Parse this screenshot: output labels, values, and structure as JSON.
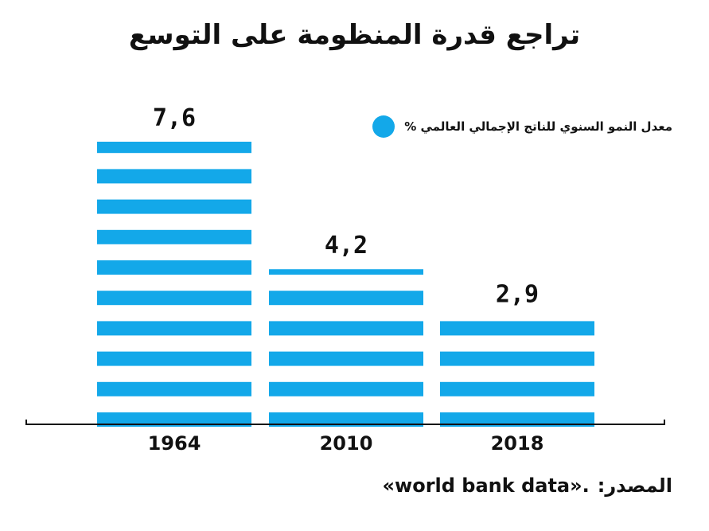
{
  "chart_data": {
    "type": "bar",
    "title": "تراجع قدرة المنظومة على التوسع",
    "categories": [
      "1964",
      "2010",
      "2018"
    ],
    "values": [
      7.6,
      4.2,
      2.9
    ],
    "value_labels": [
      "7,6",
      "4,2",
      "2,9"
    ],
    "series": [
      {
        "name": "معدل النمو السنوي للناتج الإجمالي العالمي %",
        "values": [
          7.6,
          4.2,
          2.9
        ]
      }
    ],
    "ylim": [
      0,
      8
    ],
    "grid": false,
    "legend_position": "top-right",
    "bar_style": "horizontal-stripes",
    "xlabel": "",
    "ylabel": ""
  },
  "colors": {
    "bar": "#13a8e9",
    "text": "#111111",
    "axis": "#111111"
  },
  "source": {
    "label": "المصدر:",
    "value": "«world bank data»."
  }
}
